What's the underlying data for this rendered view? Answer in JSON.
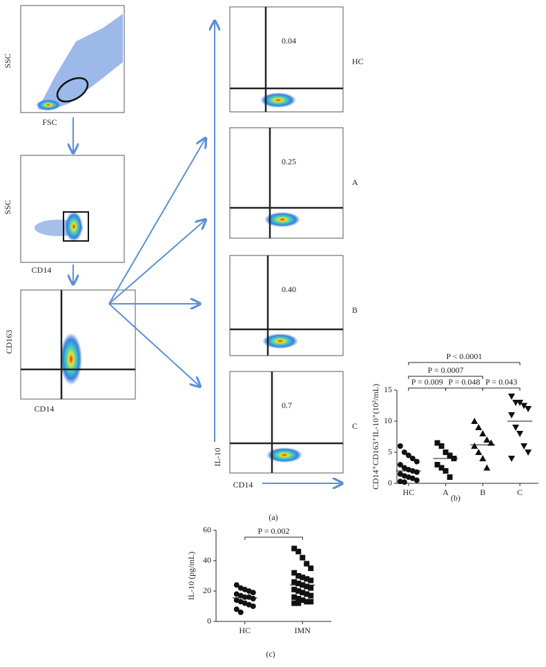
{
  "panel_a": {
    "gating": [
      {
        "x_label": "FSC",
        "y_label": "SSC"
      },
      {
        "x_label": "CD14",
        "y_label": "SSC"
      },
      {
        "x_label": "CD14",
        "y_label": "CD163"
      }
    ],
    "il10": [
      {
        "value": "0.04",
        "group": "HC"
      },
      {
        "value": "0.25",
        "group": "A"
      },
      {
        "value": "0.40",
        "group": "B"
      },
      {
        "value": "0.7",
        "group": "C"
      }
    ],
    "x_label": "CD14",
    "y_label": "IL-10",
    "caption": "(a)"
  },
  "chart_data": [
    {
      "type": "scatter",
      "y_label": "CD14⁺CD163⁺IL-10⁺(10²/mL)",
      "caption": "(b)",
      "ylim": [
        0,
        15
      ],
      "yticks": [
        0,
        5,
        10,
        15
      ],
      "groups": [
        {
          "name": "HC",
          "marker": "circle",
          "center": 2,
          "values": [
            6,
            5,
            4.5,
            4,
            3.5,
            3,
            2.5,
            2.2,
            2,
            1.8,
            1.5,
            1.2,
            1,
            0.8,
            0.5,
            0.3,
            0.2
          ]
        },
        {
          "name": "A",
          "marker": "square",
          "center": 4,
          "values": [
            6.5,
            6,
            5,
            4.5,
            4,
            3,
            2.5,
            2,
            1
          ]
        },
        {
          "name": "B",
          "marker": "triangle-up",
          "center": 6.2,
          "values": [
            10,
            9,
            8,
            7,
            6.5,
            6,
            5,
            4,
            2.5
          ]
        },
        {
          "name": "C",
          "marker": "triangle-down",
          "center": 10,
          "values": [
            14,
            13,
            13,
            12.5,
            12,
            11,
            9,
            8,
            6,
            5,
            4
          ]
        }
      ],
      "comparisons": [
        {
          "label": "P < 0.0001",
          "groups": [
            "HC",
            "C"
          ]
        },
        {
          "label": "P = 0.0007",
          "groups": [
            "HC",
            "B"
          ]
        },
        {
          "label": "P = 0.009",
          "groups": [
            "HC",
            "A"
          ]
        },
        {
          "label": "P = 0.048",
          "groups": [
            "A",
            "B"
          ]
        },
        {
          "label": "P = 0.043",
          "groups": [
            "B",
            "C"
          ]
        }
      ]
    },
    {
      "type": "scatter",
      "y_label": "IL-10 (pg/mL)",
      "caption": "(c)",
      "ylim": [
        0,
        60
      ],
      "yticks": [
        0,
        20,
        40,
        60
      ],
      "groups": [
        {
          "name": "HC",
          "marker": "circle",
          "center": 15.5,
          "values": [
            24,
            22,
            21,
            20,
            19,
            18,
            17,
            16,
            16,
            15,
            14,
            13,
            12,
            11,
            10,
            8,
            6
          ]
        },
        {
          "name": "IMN",
          "marker": "square",
          "center": 24,
          "values": [
            48,
            46,
            42,
            38,
            35,
            32,
            30,
            29,
            28,
            27,
            26,
            25,
            24,
            23,
            22,
            21,
            20,
            19,
            18,
            17,
            16,
            15,
            14,
            13,
            13,
            12,
            12
          ]
        }
      ],
      "comparisons": [
        {
          "label": "P = 0.002",
          "groups": [
            "HC",
            "IMN"
          ]
        }
      ]
    }
  ]
}
